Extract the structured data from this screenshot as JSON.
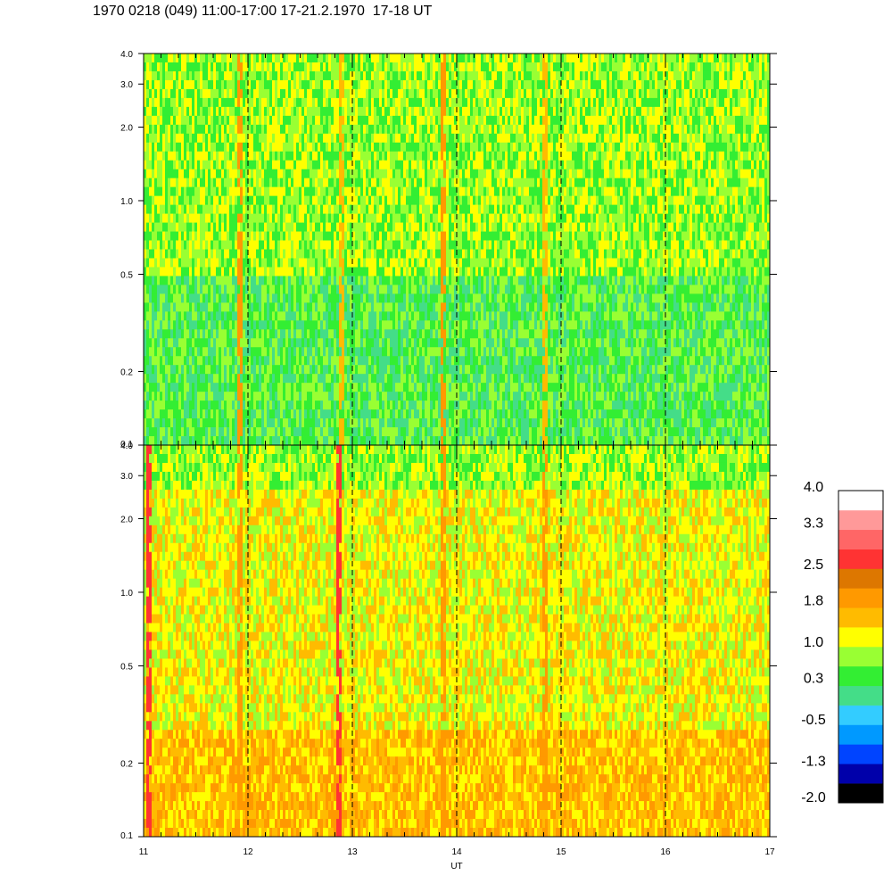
{
  "header": {
    "title": "1970 0218 (049) 11:00-17:00 17-21.2.1970  17-18 UT"
  },
  "chart_data": [
    {
      "type": "heatmap",
      "panel": "top",
      "x": {
        "label": "",
        "range": [
          11,
          17
        ],
        "ticks": [
          11,
          12,
          13,
          14,
          15,
          16,
          17
        ],
        "dashed_hour_lines": [
          12,
          13,
          14,
          15,
          16
        ]
      },
      "y": {
        "scale": "log",
        "range": [
          0.1,
          4.0
        ],
        "ticks": [
          0.1,
          0.2,
          0.5,
          1.0,
          2.0,
          3.0,
          4.0
        ],
        "tick_labels": [
          "0.1",
          "0.2",
          "0.5",
          "1.0",
          "2.0",
          "3.0",
          "4.0"
        ]
      },
      "dominant_levels": [
        0.3,
        1.0
      ],
      "bursts": [
        {
          "x": 11.92,
          "level": 2.2
        },
        {
          "x": 12.9,
          "level": 1.8
        },
        {
          "x": 13.88,
          "level": 2.2
        },
        {
          "x": 14.85,
          "level": 1.8
        }
      ]
    },
    {
      "type": "heatmap",
      "panel": "bottom",
      "x": {
        "label": "UT",
        "range": [
          11,
          17
        ],
        "ticks": [
          11,
          12,
          13,
          14,
          15,
          16,
          17
        ],
        "tick_labels": [
          "11",
          "12",
          "13",
          "14",
          "15",
          "16",
          "17"
        ],
        "dashed_hour_lines": [
          12,
          13,
          14,
          15,
          16
        ]
      },
      "y": {
        "scale": "log",
        "range": [
          0.1,
          4.0
        ],
        "ticks": [
          0.1,
          0.2,
          0.5,
          1.0,
          2.0,
          3.0,
          4.0
        ],
        "tick_labels": [
          "0.1",
          "0.2",
          "0.5",
          "1.0",
          "2.0",
          "3.0",
          "4.0"
        ]
      },
      "dominant_levels": [
        1.4,
        1.8
      ],
      "bursts": [
        {
          "x": 11.05,
          "level": 3.0
        },
        {
          "x": 11.92,
          "level": 2.2
        },
        {
          "x": 12.88,
          "level": 3.0
        },
        {
          "x": 13.88,
          "level": 2.2
        },
        {
          "x": 14.85,
          "level": 2.2
        }
      ]
    }
  ],
  "colorbar": {
    "labels": [
      "4.0",
      "3.3",
      "2.5",
      "1.8",
      "1.0",
      "0.3",
      "-0.5",
      "-1.3",
      "-2.0"
    ],
    "label_values": [
      4.0,
      3.3,
      2.5,
      1.8,
      1.0,
      0.3,
      -0.5,
      -1.3,
      -2.0
    ],
    "range": [
      -2.4,
      4.4
    ],
    "colors": [
      "#000000",
      "#0000aa",
      "#0044ff",
      "#0099ff",
      "#33ccff",
      "#44dd88",
      "#33ee33",
      "#99ff33",
      "#ffff00",
      "#ffbb00",
      "#ff9900",
      "#dd7700",
      "#ff3333",
      "#ff6666",
      "#ff9999",
      "#ffffff"
    ]
  }
}
